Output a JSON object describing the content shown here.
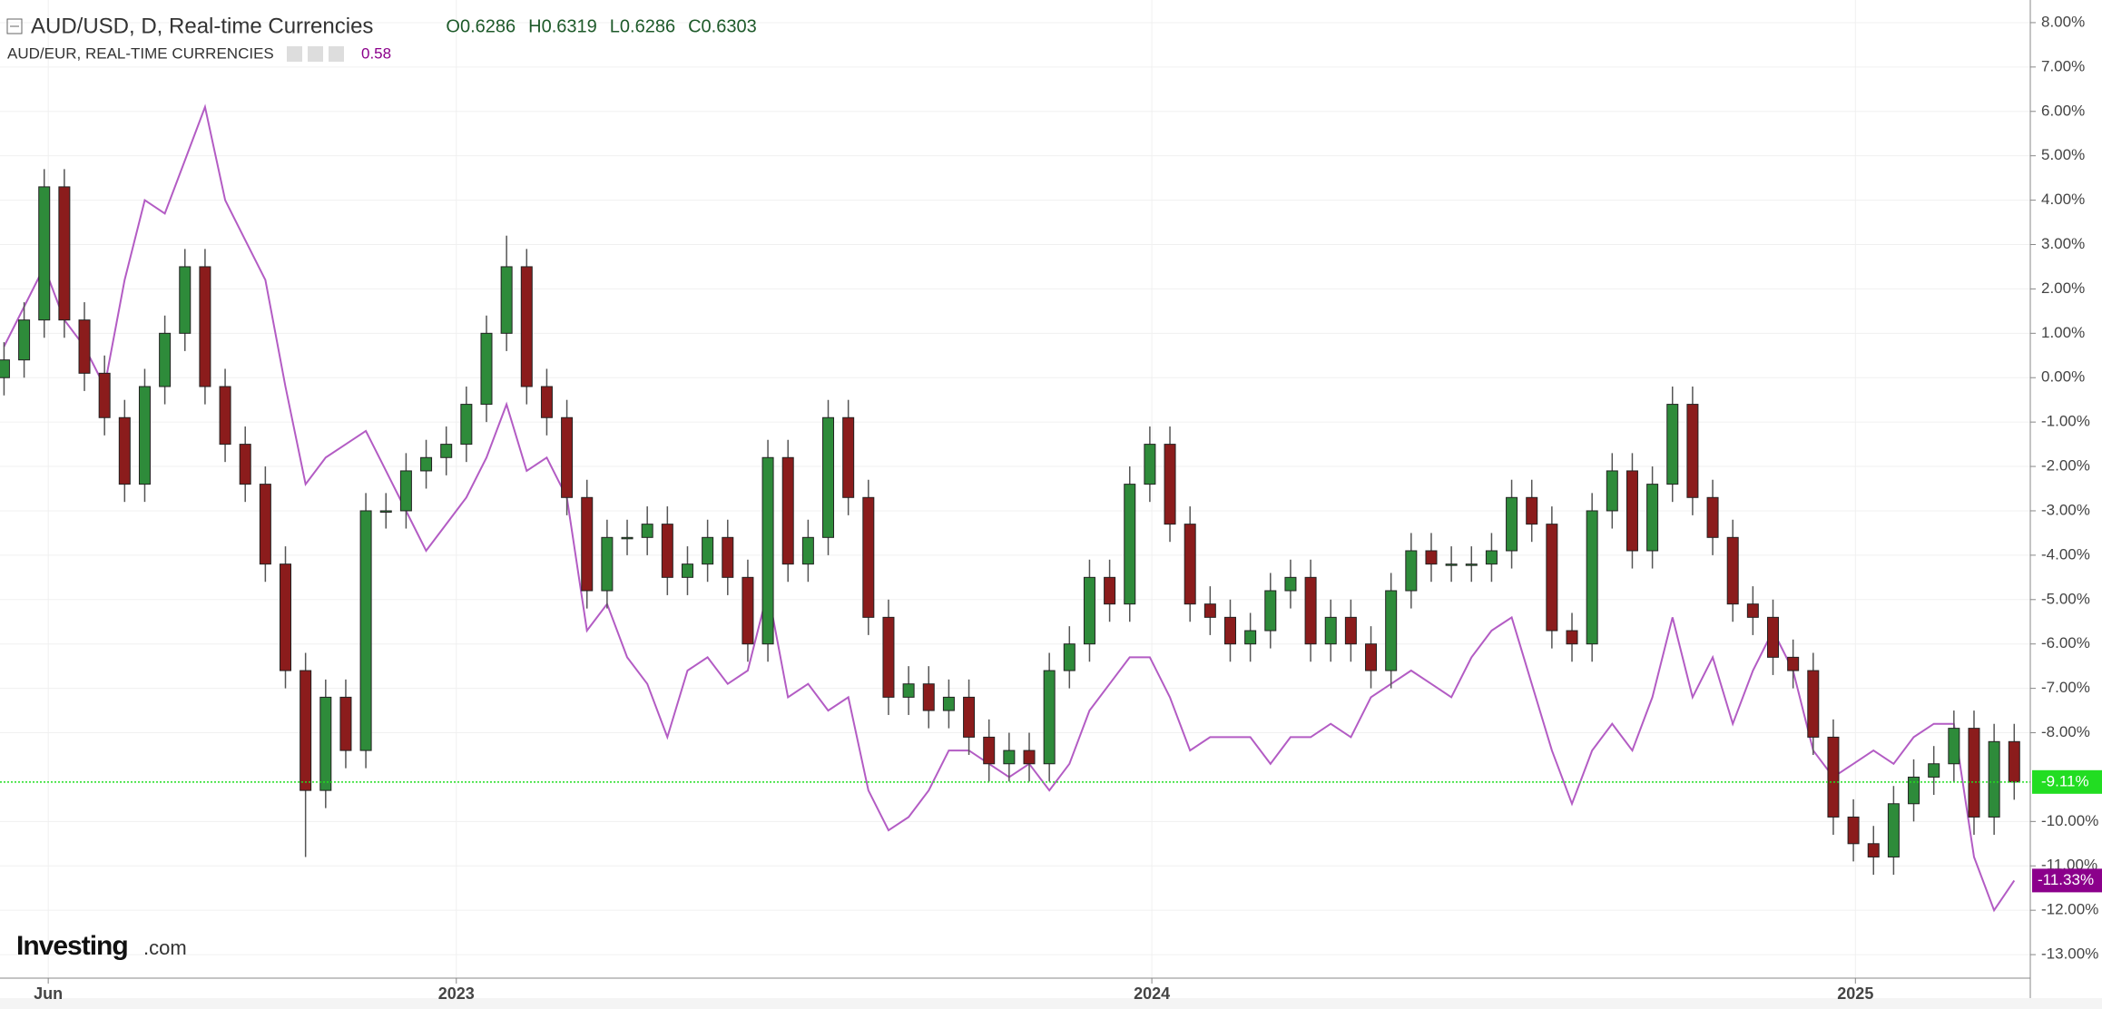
{
  "chart_data": {
    "type": "candlestick",
    "watermark": [
      "Investing",
      ".com"
    ],
    "grid": true,
    "xlim": [
      -0.2,
      100.8
    ],
    "ylim": [
      -13.53,
      8.51
    ],
    "yticks": [
      {
        "value": 8,
        "label": "8.00%"
      },
      {
        "value": 7,
        "label": "7.00%"
      },
      {
        "value": 6,
        "label": "6.00%"
      },
      {
        "value": 5,
        "label": "5.00%"
      },
      {
        "value": 4,
        "label": "4.00%"
      },
      {
        "value": 3,
        "label": "3.00%"
      },
      {
        "value": 2,
        "label": "2.00%"
      },
      {
        "value": 1,
        "label": "1.00%"
      },
      {
        "value": 0,
        "label": "0.00%"
      },
      {
        "value": -1,
        "label": "-1.00%"
      },
      {
        "value": -2,
        "label": "-2.00%"
      },
      {
        "value": -3,
        "label": "-3.00%"
      },
      {
        "value": -4,
        "label": "-4.00%"
      },
      {
        "value": -5,
        "label": "-5.00%"
      },
      {
        "value": -6,
        "label": "-6.00%"
      },
      {
        "value": -7,
        "label": "-7.00%"
      },
      {
        "value": -8,
        "label": "-8.00%"
      },
      {
        "value": -10,
        "label": "-10.00%"
      },
      {
        "value": -11,
        "label": "-11.00%"
      },
      {
        "value": -12,
        "label": "-12.00%"
      },
      {
        "value": -13,
        "label": "-13.00%"
      }
    ],
    "xticks": [
      {
        "value": 2.2,
        "label": "Jun"
      },
      {
        "value": 22.5,
        "label": "2023"
      },
      {
        "value": 57.1,
        "label": "2024"
      },
      {
        "value": 92.1,
        "label": "2025"
      }
    ],
    "series": [
      {
        "name": "AUD/USD, D, Real-time Currencies",
        "type": "candlestick",
        "ohlc_text": [
          "O0.6286",
          "H0.6319",
          "L0.6286",
          "C0.6303"
        ],
        "up_color": "#2e8b3a",
        "down_color": "#8b1c1c",
        "price_line_color": "#22dd22",
        "last_value_label": "-9.11%",
        "open": [
          0,
          0.4,
          1.3,
          4.3,
          1.3,
          0.1,
          -0.9,
          -2.4,
          -0.2,
          1.0,
          2.5,
          -0.2,
          -1.5,
          -2.4,
          -4.2,
          -6.6,
          -9.3,
          -7.2,
          -8.4,
          -3.0,
          -3.0,
          -2.1,
          -1.8,
          -1.5,
          -0.6,
          1.0,
          2.5,
          -0.2,
          -0.9,
          -2.7,
          -4.8,
          -3.6,
          -3.6,
          -3.3,
          -4.5,
          -4.2,
          -3.6,
          -4.5,
          -6.0,
          -1.8,
          -4.2,
          -3.6,
          -0.9,
          -2.7,
          -5.4,
          -7.2,
          -6.9,
          -7.5,
          -7.2,
          -8.1,
          -8.7,
          -8.4,
          -8.7,
          -6.6,
          -6.0,
          -4.5,
          -5.1,
          -2.4,
          -1.5,
          -3.3,
          -5.1,
          -5.4,
          -6.0,
          -5.7,
          -4.8,
          -4.5,
          -6.0,
          -5.4,
          -6.0,
          -6.6,
          -4.8,
          -3.9,
          -4.2,
          -4.2,
          -4.2,
          -3.9,
          -2.7,
          -3.3,
          -5.7,
          -6.0,
          -3.0,
          -2.1,
          -3.9,
          -2.4,
          -0.6,
          -2.7,
          -3.6,
          -5.1,
          -5.4,
          -6.3,
          -6.6,
          -8.1,
          -9.9,
          -10.5,
          -10.8,
          -9.6,
          -9.0,
          -8.7,
          -7.9,
          -9.9,
          -8.2
        ],
        "high": [
          0.8,
          1.7,
          4.7,
          4.7,
          1.7,
          0.5,
          -0.5,
          0.2,
          1.4,
          2.9,
          2.9,
          0.2,
          -1.1,
          -2.0,
          -3.8,
          -6.2,
          -6.8,
          -6.8,
          -2.6,
          -2.6,
          -1.7,
          -1.4,
          -1.1,
          -0.2,
          1.4,
          3.2,
          2.9,
          0.2,
          -0.5,
          -2.3,
          -3.2,
          -3.2,
          -2.9,
          -2.9,
          -3.8,
          -3.2,
          -3.2,
          -4.1,
          -1.4,
          -1.4,
          -3.2,
          -0.5,
          -0.5,
          -2.3,
          -5.0,
          -6.5,
          -6.5,
          -6.8,
          -6.8,
          -7.7,
          -8.0,
          -8.0,
          -6.2,
          -5.6,
          -4.1,
          -4.1,
          -2.0,
          -1.1,
          -1.1,
          -2.9,
          -4.7,
          -5.0,
          -5.3,
          -4.4,
          -4.1,
          -4.1,
          -5.0,
          -5.0,
          -5.6,
          -4.4,
          -3.5,
          -3.5,
          -3.8,
          -3.8,
          -3.5,
          -2.3,
          -2.3,
          -2.9,
          -5.3,
          -2.6,
          -1.7,
          -1.7,
          -2.0,
          -0.2,
          -0.2,
          -2.3,
          -3.2,
          -4.7,
          -5.0,
          -5.9,
          -6.2,
          -7.7,
          -9.5,
          -10.1,
          -9.2,
          -8.6,
          -8.3,
          -7.5,
          -7.5,
          -7.8,
          -7.8
        ],
        "low": [
          -0.4,
          0.0,
          0.9,
          0.9,
          -0.3,
          -1.3,
          -2.8,
          -2.8,
          -0.6,
          0.6,
          -0.6,
          -1.9,
          -2.8,
          -4.6,
          -7.0,
          -10.8,
          -9.7,
          -8.8,
          -8.8,
          -3.4,
          -3.4,
          -2.5,
          -2.2,
          -1.9,
          -1.0,
          0.6,
          -0.6,
          -1.3,
          -3.1,
          -5.2,
          -5.2,
          -4.0,
          -4.0,
          -4.9,
          -4.9,
          -4.6,
          -4.9,
          -6.4,
          -6.4,
          -4.6,
          -4.6,
          -4.0,
          -3.1,
          -5.8,
          -7.6,
          -7.6,
          -7.9,
          -7.9,
          -8.5,
          -9.1,
          -9.1,
          -9.1,
          -9.1,
          -7.0,
          -6.4,
          -5.5,
          -5.5,
          -2.8,
          -3.7,
          -5.5,
          -5.8,
          -6.4,
          -6.4,
          -6.1,
          -5.2,
          -6.4,
          -6.4,
          -6.4,
          -7.0,
          -7.0,
          -5.2,
          -4.6,
          -4.6,
          -4.6,
          -4.6,
          -4.3,
          -3.7,
          -6.1,
          -6.4,
          -6.4,
          -3.4,
          -4.3,
          -4.3,
          -2.8,
          -3.1,
          -4.0,
          -5.5,
          -5.8,
          -6.7,
          -7.0,
          -8.5,
          -10.3,
          -10.9,
          -11.2,
          -11.2,
          -10.0,
          -9.4,
          -9.1,
          -10.3,
          -10.3,
          -9.51
        ],
        "close": [
          0.4,
          1.3,
          4.3,
          1.3,
          0.1,
          -0.9,
          -2.4,
          -0.2,
          1.0,
          2.5,
          -0.2,
          -1.5,
          -2.4,
          -4.2,
          -6.6,
          -9.3,
          -7.2,
          -8.4,
          -3.0,
          -3.0,
          -2.1,
          -1.8,
          -1.5,
          -0.6,
          1.0,
          2.5,
          -0.2,
          -0.9,
          -2.7,
          -4.8,
          -3.6,
          -3.6,
          -3.3,
          -4.5,
          -4.2,
          -3.6,
          -4.5,
          -6.0,
          -1.8,
          -4.2,
          -3.6,
          -0.9,
          -2.7,
          -5.4,
          -7.2,
          -6.9,
          -7.5,
          -7.2,
          -8.1,
          -8.7,
          -8.4,
          -8.7,
          -6.6,
          -6.0,
          -4.5,
          -5.1,
          -2.4,
          -1.5,
          -3.3,
          -5.1,
          -5.4,
          -6.0,
          -5.7,
          -4.8,
          -4.5,
          -6.0,
          -5.4,
          -6.0,
          -6.6,
          -4.8,
          -3.9,
          -4.2,
          -4.2,
          -4.2,
          -3.9,
          -2.7,
          -3.3,
          -5.7,
          -6.0,
          -3.0,
          -2.1,
          -3.9,
          -2.4,
          -0.6,
          -2.7,
          -3.6,
          -5.1,
          -5.4,
          -6.3,
          -6.6,
          -8.1,
          -9.9,
          -10.5,
          -10.8,
          -9.6,
          -9.0,
          -8.7,
          -7.9,
          -9.9,
          -8.2,
          -9.11
        ]
      },
      {
        "name": "AUD/EUR, REAL-TIME CURRENCIES",
        "type": "line",
        "color": "#b35cc4",
        "label_color": "#8b008b",
        "legend_value": "0.58",
        "last_value_label": "-11.33%",
        "values": [
          0.7,
          1.6,
          2.5,
          1.3,
          0.7,
          -0.2,
          2.2,
          4.0,
          3.7,
          4.9,
          6.1,
          4.0,
          3.1,
          2.2,
          -0.2,
          -2.4,
          -1.8,
          -1.5,
          -1.2,
          -2.1,
          -3.0,
          -3.9,
          -3.3,
          -2.7,
          -1.8,
          -0.6,
          -2.1,
          -1.8,
          -2.7,
          -5.7,
          -5.1,
          -6.3,
          -6.9,
          -8.1,
          -6.6,
          -6.3,
          -6.9,
          -6.6,
          -4.8,
          -7.2,
          -6.9,
          -7.5,
          -7.2,
          -9.3,
          -10.2,
          -9.9,
          -9.3,
          -8.4,
          -8.4,
          -8.7,
          -9.0,
          -8.7,
          -9.3,
          -8.7,
          -7.5,
          -6.9,
          -6.3,
          -6.3,
          -7.2,
          -8.4,
          -8.1,
          -8.1,
          -8.1,
          -8.7,
          -8.1,
          -8.1,
          -7.8,
          -8.1,
          -7.2,
          -6.9,
          -6.6,
          -6.9,
          -7.2,
          -6.3,
          -5.7,
          -5.4,
          -6.9,
          -8.4,
          -9.6,
          -8.4,
          -7.8,
          -8.4,
          -7.2,
          -5.4,
          -7.2,
          -6.3,
          -7.8,
          -6.6,
          -5.7,
          -6.6,
          -8.4,
          -9.0,
          -8.7,
          -8.4,
          -8.7,
          -8.1,
          -7.8,
          -7.8,
          -10.8,
          -12.0,
          -11.33
        ]
      }
    ]
  }
}
